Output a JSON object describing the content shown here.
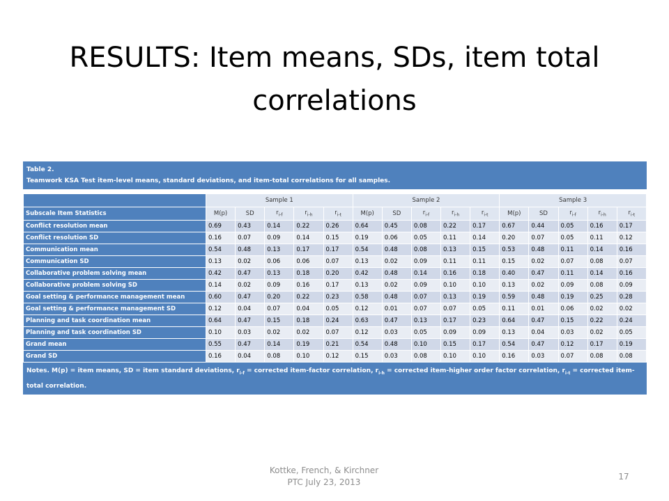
{
  "title": "RESULTS: Item means, SDs, item total correlations",
  "table": {
    "caption": [
      "Table 2.",
      "Teamwork KSA Test item-level means, standard deviations, and item-total correlations for all samples."
    ],
    "row_header": "Subscale Item Statistics",
    "samples": [
      {
        "name": "Sample 1",
        "columns": [
          {
            "text": "M(p)"
          },
          {
            "text": "SD"
          },
          {
            "text": "r",
            "sub": "i-f"
          },
          {
            "text": "r",
            "sub": "i-h"
          },
          {
            "text": "r",
            "sub": "i-t"
          }
        ]
      },
      {
        "name": "Sample 2",
        "columns": [
          {
            "text": "M(p)"
          },
          {
            "text": "SD"
          },
          {
            "text": "r",
            "sub": "i-f"
          },
          {
            "text": "r",
            "sub": "i-h"
          },
          {
            "text": "r",
            "sub": "i-t"
          }
        ]
      },
      {
        "name": "Sample 3",
        "columns": [
          {
            "text": "M(p)"
          },
          {
            "text": "SD"
          },
          {
            "text": "r",
            "sub": "i-f"
          },
          {
            "text": "r",
            "sub": "i-h"
          },
          {
            "text": "r",
            "sub": "i-t"
          }
        ]
      }
    ],
    "rows": [
      {
        "label": "Conflict resolution mean",
        "cells": [
          "0.69",
          "0.43",
          "0.14",
          "0.22",
          "0.26",
          "0.64",
          "0.45",
          "0.08",
          "0.22",
          "0.17",
          "0.67",
          "0.44",
          "0.05",
          "0.16",
          "0.17"
        ]
      },
      {
        "label": "Conflict resolution SD",
        "cells": [
          "0.16",
          "0.07",
          "0.09",
          "0.14",
          "0.15",
          "0.19",
          "0.06",
          "0.05",
          "0.11",
          "0.14",
          "0.20",
          "0.07",
          "0.05",
          "0.11",
          "0.12"
        ]
      },
      {
        "label": "Communication mean",
        "cells": [
          "0.54",
          "0.48",
          "0.13",
          "0.17",
          "0.17",
          "0.54",
          "0.48",
          "0.08",
          "0.13",
          "0.15",
          "0.53",
          "0.48",
          "0.11",
          "0.14",
          "0.16"
        ]
      },
      {
        "label": "Communication SD",
        "cells": [
          "0.13",
          "0.02",
          "0.06",
          "0.06",
          "0.07",
          "0.13",
          "0.02",
          "0.09",
          "0.11",
          "0.11",
          "0.15",
          "0.02",
          "0.07",
          "0.08",
          "0.07"
        ]
      },
      {
        "label": "Collaborative problem solving mean",
        "cells": [
          "0.42",
          "0.47",
          "0.13",
          "0.18",
          "0.20",
          "0.42",
          "0.48",
          "0.14",
          "0.16",
          "0.18",
          "0.40",
          "0.47",
          "0.11",
          "0.14",
          "0.16"
        ]
      },
      {
        "label": "Collaborative problem solving SD",
        "cells": [
          "0.14",
          "0.02",
          "0.09",
          "0.16",
          "0.17",
          "0.13",
          "0.02",
          "0.09",
          "0.10",
          "0.10",
          "0.13",
          "0.02",
          "0.09",
          "0.08",
          "0.09"
        ]
      },
      {
        "label": "Goal setting & performance management mean",
        "cells": [
          "0.60",
          "0.47",
          "0.20",
          "0.22",
          "0.23",
          "0.58",
          "0.48",
          "0.07",
          "0.13",
          "0.19",
          "0.59",
          "0.48",
          "0.19",
          "0.25",
          "0.28"
        ]
      },
      {
        "label": "Goal setting & performance management SD",
        "cells": [
          "0.12",
          "0.04",
          "0.07",
          "0.04",
          "0.05",
          "0.12",
          "0.01",
          "0.07",
          "0.07",
          "0.05",
          "0.11",
          "0.01",
          "0.06",
          "0.02",
          "0.02"
        ]
      },
      {
        "label": "Planning and task coordination mean",
        "cells": [
          "0.64",
          "0.47",
          "0.15",
          "0.18",
          "0.24",
          "0.63",
          "0.47",
          "0.13",
          "0.17",
          "0.23",
          "0.64",
          "0.47",
          "0.15",
          "0.22",
          "0.24"
        ]
      },
      {
        "label": "Planning and task coordination SD",
        "cells": [
          "0.10",
          "0.03",
          "0.02",
          "0.02",
          "0.07",
          "0.12",
          "0.03",
          "0.05",
          "0.09",
          "0.09",
          "0.13",
          "0.04",
          "0.03",
          "0.02",
          "0.05"
        ]
      },
      {
        "label": "Grand mean",
        "cells": [
          "0.55",
          "0.47",
          "0.14",
          "0.19",
          "0.21",
          "0.54",
          "0.48",
          "0.10",
          "0.15",
          "0.17",
          "0.54",
          "0.47",
          "0.12",
          "0.17",
          "0.19"
        ]
      },
      {
        "label": "Grand SD",
        "cells": [
          "0.16",
          "0.04",
          "0.08",
          "0.10",
          "0.12",
          "0.15",
          "0.03",
          "0.08",
          "0.10",
          "0.10",
          "0.16",
          "0.03",
          "0.07",
          "0.08",
          "0.08"
        ]
      }
    ],
    "notes": [
      "Notes. M(p) = item means, SD = item standard deviations, r",
      "i-f",
      " = corrected item-factor correlation, r",
      "i-h",
      " = corrected item-higher order factor correlation, r",
      "i-t",
      " = corrected item-total correlation."
    ]
  },
  "footer": {
    "lines": [
      "Kottke, French, & Kirchner",
      "PTC July 23, 2013"
    ],
    "page_number": "17"
  }
}
